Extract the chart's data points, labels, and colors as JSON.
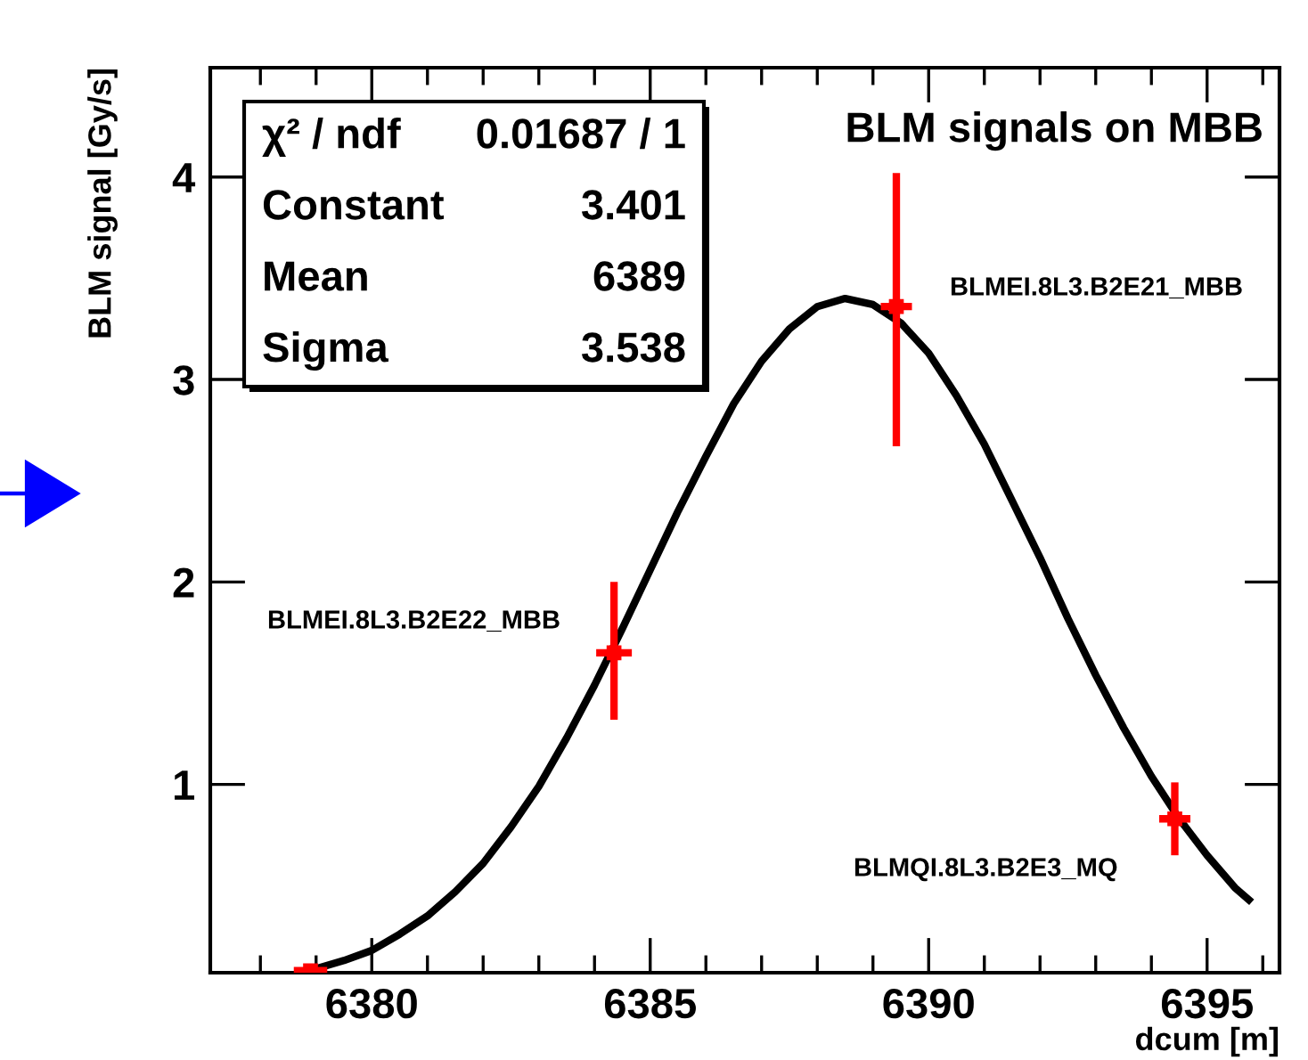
{
  "chart_data": {
    "type": "scatter",
    "title": "BLM signals on MBB",
    "xlabel": "dcum [m]",
    "ylabel": "BLM signal [Gy/s]",
    "xlim": [
      6377.1,
      6396.3
    ],
    "ylim": [
      0.07,
      4.54
    ],
    "xticks": [
      6380,
      6385,
      6390,
      6395
    ],
    "yticks": [
      1,
      2,
      3,
      4
    ],
    "grid": false,
    "legend": false,
    "series": [
      {
        "color": "#ff0000",
        "marker": "square",
        "x": [
          6378.9,
          6384.35,
          6389.42,
          6394.42
        ],
        "values": [
          0.08,
          1.65,
          3.36,
          0.83
        ],
        "errors": [
          null,
          [
            1.32,
            2.0
          ],
          [
            2.67,
            4.02
          ],
          [
            0.65,
            1.01
          ]
        ],
        "xerrors": [
          0.3,
          0.32,
          0.28,
          0.28
        ]
      },
      {
        "type": "line",
        "color": "#000000",
        "line_style": "solid",
        "x": [
          6379.0,
          6379.5,
          6380.0,
          6380.5,
          6381.0,
          6381.5,
          6382.0,
          6382.5,
          6383.0,
          6383.5,
          6384.0,
          6384.5,
          6385.0,
          6385.5,
          6386.0,
          6386.5,
          6387.0,
          6387.5,
          6388.0,
          6388.5,
          6389.0,
          6389.5,
          6390.0,
          6390.5,
          6391.0,
          6391.5,
          6392.0,
          6392.5,
          6393.0,
          6393.5,
          6394.0,
          6394.5,
          6395.0,
          6395.5,
          6395.75
        ],
        "values": [
          0.09,
          0.13,
          0.18,
          0.26,
          0.35,
          0.47,
          0.61,
          0.79,
          0.99,
          1.23,
          1.49,
          1.77,
          2.06,
          2.35,
          2.62,
          2.88,
          3.09,
          3.25,
          3.36,
          3.4,
          3.37,
          3.28,
          3.13,
          2.92,
          2.68,
          2.4,
          2.12,
          1.82,
          1.54,
          1.28,
          1.04,
          0.83,
          0.65,
          0.49,
          0.43
        ]
      }
    ],
    "annotations": [
      "χ² / ndf",
      "0.01687 / 1",
      "Constant",
      "3.401",
      "Mean",
      "6389",
      "Sigma",
      "3.538",
      "BLMEI.8L3.B2E22_MBB",
      "BLMEI.8L3.B2E21_MBB",
      "BLMQI.8L3.B2E3_MQ"
    ]
  }
}
